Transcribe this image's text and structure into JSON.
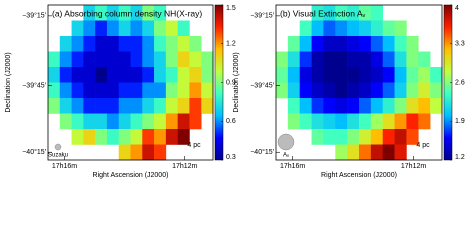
{
  "chart_data": [
    {
      "type": "heatmap",
      "title": "(a) Absorbing column density NH(X-ray)",
      "xlabel": "Right Ascension (J2000)",
      "ylabel": "Declination (J2000)",
      "xlim": [
        0,
        14
      ],
      "ylim": [
        0,
        10
      ],
      "xticks": [
        {
          "value": 1.4,
          "label": "17h16m"
        },
        {
          "value": 11.6,
          "label": "17h12m"
        }
      ],
      "yticks": [
        {
          "value": 0.7,
          "label": "−39°15′"
        },
        {
          "value": 5.2,
          "label": "−39°45′"
        },
        {
          "value": 9.5,
          "label": "−40°15′"
        }
      ],
      "clim": [
        0.3,
        1.5
      ],
      "cticks": [
        1.5,
        1.2,
        0.9,
        0.6,
        0.3
      ],
      "colormap": [
        "#00008f",
        "#0000ff",
        "#00bfff",
        "#40ffbf",
        "#c0ff40",
        "#ffbf00",
        "#ff2000",
        "#800000"
      ],
      "scale_label": "4 pc",
      "beam_label": "Suzaku",
      "z": [
        [
          null,
          null,
          null,
          0.7,
          0.8,
          0.7,
          0.8,
          0.7,
          0.9,
          0.8,
          null,
          null,
          null,
          null
        ],
        [
          null,
          null,
          0.7,
          0.6,
          0.5,
          0.6,
          0.7,
          0.6,
          0.7,
          0.9,
          1.0,
          0.8,
          null,
          null
        ],
        [
          null,
          0.7,
          0.6,
          0.5,
          0.4,
          0.4,
          0.5,
          0.5,
          0.6,
          0.8,
          0.9,
          1.0,
          0.9,
          null
        ],
        [
          0.8,
          0.6,
          0.5,
          0.4,
          0.4,
          0.4,
          0.4,
          0.5,
          0.6,
          0.7,
          0.9,
          1.1,
          1.0,
          0.9
        ],
        [
          0.7,
          0.5,
          0.4,
          0.4,
          0.3,
          0.4,
          0.4,
          0.4,
          0.5,
          0.7,
          0.8,
          1.0,
          1.1,
          0.9
        ],
        [
          0.8,
          0.6,
          0.5,
          0.4,
          0.4,
          0.4,
          0.5,
          0.5,
          0.6,
          0.6,
          0.9,
          1.0,
          1.2,
          1.0
        ],
        [
          0.9,
          0.7,
          0.6,
          0.5,
          0.5,
          0.5,
          0.6,
          0.6,
          0.7,
          0.8,
          1.0,
          1.1,
          1.3,
          1.1
        ],
        [
          null,
          0.9,
          0.8,
          0.7,
          0.7,
          0.6,
          0.7,
          0.8,
          0.9,
          1.0,
          1.2,
          1.4,
          1.3,
          null
        ],
        [
          null,
          null,
          1.0,
          1.1,
          0.9,
          0.8,
          0.9,
          1.0,
          1.3,
          1.2,
          1.4,
          1.5,
          null,
          null
        ],
        [
          null,
          null,
          null,
          null,
          null,
          null,
          1.1,
          1.2,
          1.4,
          1.3,
          null,
          null,
          null,
          null
        ]
      ]
    },
    {
      "type": "heatmap",
      "title": "(b) Visual Extinction Aᵥ",
      "xlabel": "Right Ascension (J2000)",
      "ylabel": "Declination (J2000)",
      "xlim": [
        0,
        14
      ],
      "ylim": [
        0,
        10
      ],
      "xticks": [
        {
          "value": 1.4,
          "label": "17h16m"
        },
        {
          "value": 11.6,
          "label": "17h12m"
        }
      ],
      "yticks": [
        {
          "value": 0.7,
          "label": "−39°15′"
        },
        {
          "value": 5.2,
          "label": "−39°45′"
        },
        {
          "value": 9.5,
          "label": "−40°15′"
        }
      ],
      "clim": [
        1.2,
        4.0
      ],
      "cticks": [
        4.0,
        3.3,
        2.6,
        1.9,
        1.2
      ],
      "colormap": [
        "#00008f",
        "#0000ff",
        "#00bfff",
        "#40ffbf",
        "#c0ff40",
        "#ffbf00",
        "#ff2000",
        "#800000"
      ],
      "scale_label": "4 pc",
      "beam_label": "Aᵥ",
      "z": [
        [
          null,
          null,
          null,
          2.3,
          2.2,
          2.4,
          2.3,
          2.5,
          2.4,
          null,
          null,
          null,
          null,
          null
        ],
        [
          null,
          null,
          2.4,
          2.0,
          1.8,
          1.9,
          2.0,
          2.1,
          2.3,
          2.5,
          2.6,
          null,
          null,
          null
        ],
        [
          null,
          2.5,
          2.0,
          1.6,
          1.4,
          1.4,
          1.5,
          1.6,
          1.8,
          2.0,
          2.4,
          2.6,
          null,
          null
        ],
        [
          2.6,
          2.2,
          1.7,
          1.3,
          1.2,
          1.2,
          1.3,
          1.3,
          1.5,
          1.8,
          2.2,
          2.6,
          2.5,
          null
        ],
        [
          2.5,
          2.0,
          1.5,
          1.3,
          1.2,
          1.2,
          1.2,
          1.3,
          1.4,
          1.6,
          2.0,
          2.5,
          2.7,
          2.4
        ],
        [
          2.6,
          2.1,
          1.6,
          1.4,
          1.3,
          1.2,
          1.3,
          1.4,
          1.6,
          1.8,
          2.1,
          2.6,
          2.9,
          2.6
        ],
        [
          null,
          2.4,
          2.0,
          1.7,
          1.6,
          1.5,
          1.6,
          1.8,
          2.0,
          2.3,
          2.6,
          3.0,
          3.2,
          2.8
        ],
        [
          null,
          2.6,
          2.4,
          2.2,
          2.1,
          2.0,
          2.2,
          2.4,
          2.7,
          3.0,
          3.3,
          3.6,
          3.4,
          null
        ],
        [
          null,
          null,
          null,
          2.5,
          2.4,
          2.4,
          2.6,
          2.9,
          3.2,
          3.6,
          3.8,
          3.5,
          null,
          null
        ],
        [
          null,
          null,
          null,
          null,
          null,
          2.7,
          3.0,
          3.4,
          3.8,
          4.0,
          3.7,
          null,
          null,
          null
        ]
      ]
    }
  ]
}
